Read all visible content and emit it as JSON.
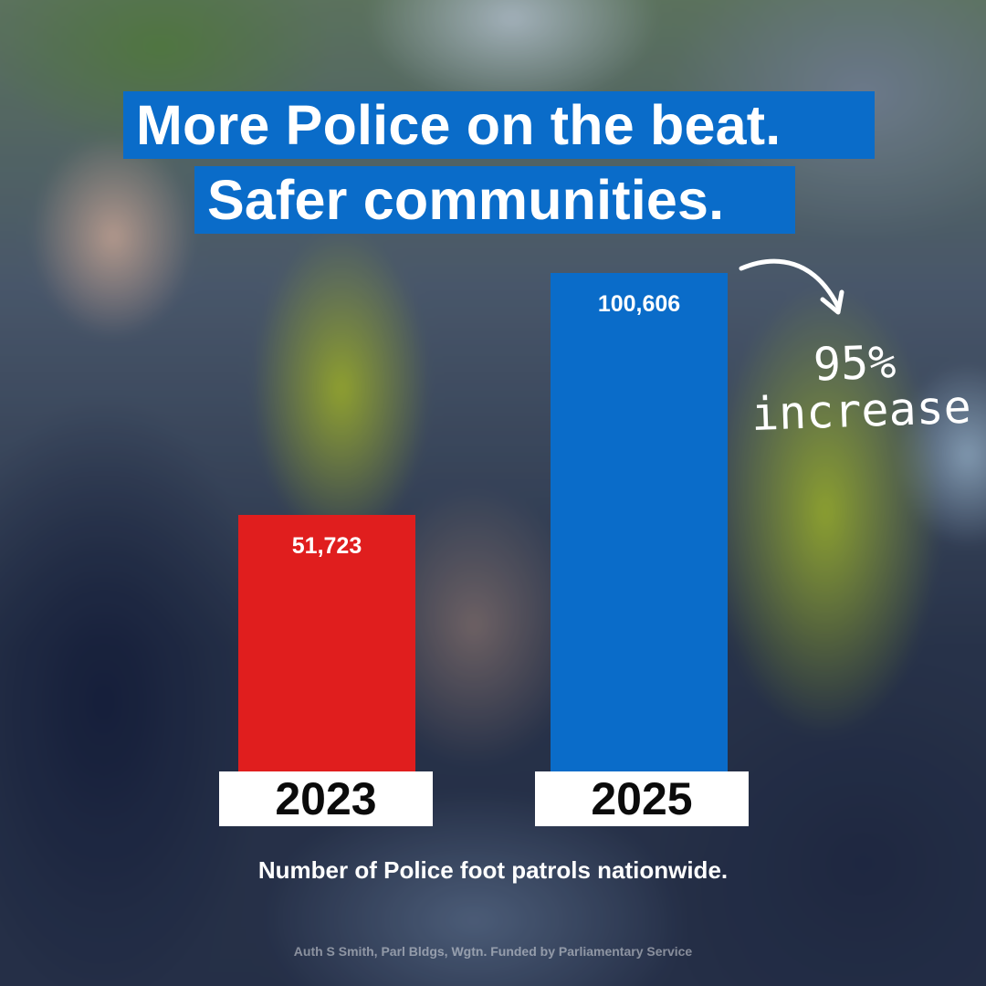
{
  "headline": {
    "line1": "More Police on the beat.",
    "line2": "Safer communities."
  },
  "chart_data": {
    "type": "bar",
    "categories": [
      "2023",
      "2025"
    ],
    "values": [
      51723,
      100606
    ],
    "value_labels": [
      "51,723",
      "100,606"
    ],
    "bar_colors": [
      "#e01e1e",
      "#0a6cc9"
    ],
    "title": "More Police on the beat. Safer communities.",
    "xlabel": "Number of Police foot patrols nationwide.",
    "ylabel": "",
    "annotation": "95% increase"
  },
  "annotation": {
    "line1": "95%",
    "line2": "increase"
  },
  "caption": "Number of Police foot patrols nationwide.",
  "authorisation": "Auth S Smith, Parl Bldgs, Wgtn. Funded by Parliamentary Service",
  "colors": {
    "brand_blue": "#0a6cc9",
    "red": "#e01e1e",
    "white": "#ffffff"
  }
}
